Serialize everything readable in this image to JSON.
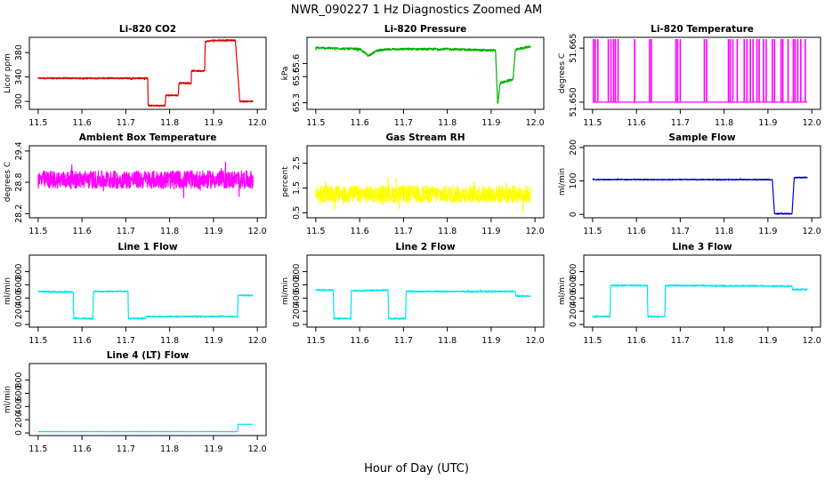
{
  "figure": {
    "title": "NWR_090227  1 Hz Diagnostics Zoomed AM",
    "xlabel": "Hour of Day (UTC)"
  },
  "chart_data": [
    {
      "type": "line",
      "title": "Li-820 CO2",
      "xlabel": "",
      "ylabel": "Licor ppm",
      "color": "#e00000",
      "xlim": [
        11.5,
        12.0
      ],
      "ylim": [
        287,
        405
      ],
      "yticks": [
        300,
        340,
        380
      ],
      "xticks": [
        11.5,
        11.6,
        11.7,
        11.8,
        11.9,
        12.0
      ],
      "noise": 1.2,
      "x": [
        11.5,
        11.75,
        11.751,
        11.79,
        11.791,
        11.82,
        11.821,
        11.849,
        11.85,
        11.88,
        11.881,
        11.9,
        11.95,
        11.96,
        11.965,
        11.99
      ],
      "y": [
        338,
        338,
        293,
        293,
        310,
        310,
        330,
        330,
        350,
        350,
        398,
        400,
        400,
        300,
        300,
        300
      ]
    },
    {
      "type": "line",
      "title": "Li-820 Pressure",
      "xlabel": "",
      "ylabel": "kPa",
      "color": "#00b000",
      "xlim": [
        11.5,
        12.0
      ],
      "ylim": [
        65.25,
        65.8
      ],
      "yticks": [
        65.3,
        65.5,
        65.6
      ],
      "xticks": [
        11.5,
        11.6,
        11.7,
        11.8,
        11.9,
        12.0
      ],
      "noise": 0.008,
      "x": [
        11.5,
        11.6,
        11.62,
        11.64,
        11.68,
        11.8,
        11.9,
        11.91,
        11.915,
        11.92,
        11.93,
        11.95,
        11.955,
        11.96,
        11.99
      ],
      "y": [
        65.72,
        65.71,
        65.66,
        65.7,
        65.71,
        65.71,
        65.7,
        65.7,
        65.28,
        65.45,
        65.46,
        65.48,
        65.7,
        65.71,
        65.73
      ]
    },
    {
      "type": "line",
      "title": "Li-820 Temperature",
      "xlabel": "",
      "ylabel": "degrees C",
      "color": "#ff00ff",
      "xlim": [
        11.5,
        12.0
      ],
      "ylim": [
        51.648,
        51.668
      ],
      "yticks": [
        51.65,
        51.665
      ],
      "ytick_labels": [
        "51.650",
        "51.665"
      ],
      "xticks": [
        11.5,
        11.6,
        11.7,
        11.8,
        11.9,
        12.0
      ],
      "noise": 0,
      "x": [
        11.5,
        11.99
      ],
      "y": [
        51.65,
        51.65
      ]
    },
    {
      "type": "line",
      "title": "Ambient Box Temperature",
      "xlabel": "",
      "ylabel": "degrees C",
      "color": "#ff00ff",
      "xlim": [
        11.5,
        12.0
      ],
      "ylim": [
        28.12,
        29.5
      ],
      "yticks": [
        28.2,
        28.8,
        29.4
      ],
      "xticks": [
        11.5,
        11.6,
        11.7,
        11.8,
        11.9,
        12.0
      ],
      "noise": 0.17,
      "x": [
        11.5,
        11.99
      ],
      "y": [
        28.85,
        28.85
      ]
    },
    {
      "type": "line",
      "title": "Gas Stream RH",
      "xlabel": "",
      "ylabel": "percent",
      "color": "#ffff00",
      "xlim": [
        11.5,
        12.0
      ],
      "ylim": [
        0.3,
        3.2
      ],
      "yticks": [
        0.5,
        1.5,
        2.5
      ],
      "xticks": [
        11.5,
        11.6,
        11.7,
        11.8,
        11.9,
        12.0
      ],
      "noise": 0.35,
      "x": [
        11.5,
        11.99
      ],
      "y": [
        1.25,
        1.25
      ]
    },
    {
      "type": "line",
      "title": "Sample Flow",
      "xlabel": "",
      "ylabel": "ml/min",
      "color": "#0000cc",
      "xlim": [
        11.5,
        12.0
      ],
      "ylim": [
        -10,
        205
      ],
      "yticks": [
        0,
        100,
        200
      ],
      "xticks": [
        11.5,
        11.6,
        11.7,
        11.8,
        11.9,
        12.0
      ],
      "noise": 1.5,
      "x": [
        11.5,
        11.91,
        11.915,
        11.955,
        11.96,
        11.99
      ],
      "y": [
        104,
        104,
        2,
        2,
        110,
        110
      ]
    },
    {
      "type": "line",
      "title": "Line 1 Flow",
      "xlabel": "",
      "ylabel": "ml/min",
      "color": "#00e5ee",
      "xlim": [
        11.5,
        12.0
      ],
      "ylim": [
        -40,
        1050
      ],
      "yticks": [
        0,
        200,
        400,
        600,
        800
      ],
      "xticks": [
        11.5,
        11.6,
        11.7,
        11.8,
        11.9,
        12.0
      ],
      "noise": 10,
      "x": [
        11.5,
        11.58,
        11.581,
        11.625,
        11.626,
        11.705,
        11.706,
        11.745,
        11.746,
        11.955,
        11.956,
        11.99
      ],
      "y": [
        500,
        490,
        90,
        90,
        500,
        500,
        90,
        90,
        120,
        120,
        440,
        440
      ]
    },
    {
      "type": "line",
      "title": "Line 2 Flow",
      "xlabel": "",
      "ylabel": "ml/min",
      "color": "#00e5ee",
      "xlim": [
        11.5,
        12.0
      ],
      "ylim": [
        -40,
        1050
      ],
      "yticks": [
        0,
        200,
        400,
        600,
        800
      ],
      "xticks": [
        11.5,
        11.6,
        11.7,
        11.8,
        11.9,
        12.0
      ],
      "noise": 10,
      "x": [
        11.5,
        11.54,
        11.541,
        11.58,
        11.581,
        11.665,
        11.666,
        11.705,
        11.706,
        11.955,
        11.956,
        11.99
      ],
      "y": [
        520,
        520,
        90,
        90,
        510,
        520,
        90,
        90,
        500,
        500,
        430,
        430
      ]
    },
    {
      "type": "line",
      "title": "Line 3 Flow",
      "xlabel": "",
      "ylabel": "ml/min",
      "color": "#00e5ee",
      "xlim": [
        11.5,
        12.0
      ],
      "ylim": [
        -40,
        1050
      ],
      "yticks": [
        0,
        200,
        400,
        600,
        800
      ],
      "xticks": [
        11.5,
        11.6,
        11.7,
        11.8,
        11.9,
        12.0
      ],
      "noise": 10,
      "x": [
        11.5,
        11.54,
        11.541,
        11.625,
        11.626,
        11.665,
        11.666,
        11.955,
        11.956,
        11.99
      ],
      "y": [
        120,
        120,
        590,
        590,
        120,
        120,
        590,
        580,
        530,
        530
      ]
    },
    {
      "type": "line",
      "title": "Line 4 (LT) Flow",
      "xlabel": "",
      "ylabel": "ml/min",
      "color": "#00e5ee",
      "xlim": [
        11.5,
        12.0
      ],
      "ylim": [
        -40,
        1050
      ],
      "yticks": [
        0,
        200,
        400,
        600,
        800
      ],
      "xticks": [
        11.5,
        11.6,
        11.7,
        11.8,
        11.9,
        12.0
      ],
      "noise": 2,
      "x": [
        11.5,
        11.955,
        11.956,
        11.99
      ],
      "y": [
        20,
        20,
        130,
        130
      ]
    }
  ]
}
